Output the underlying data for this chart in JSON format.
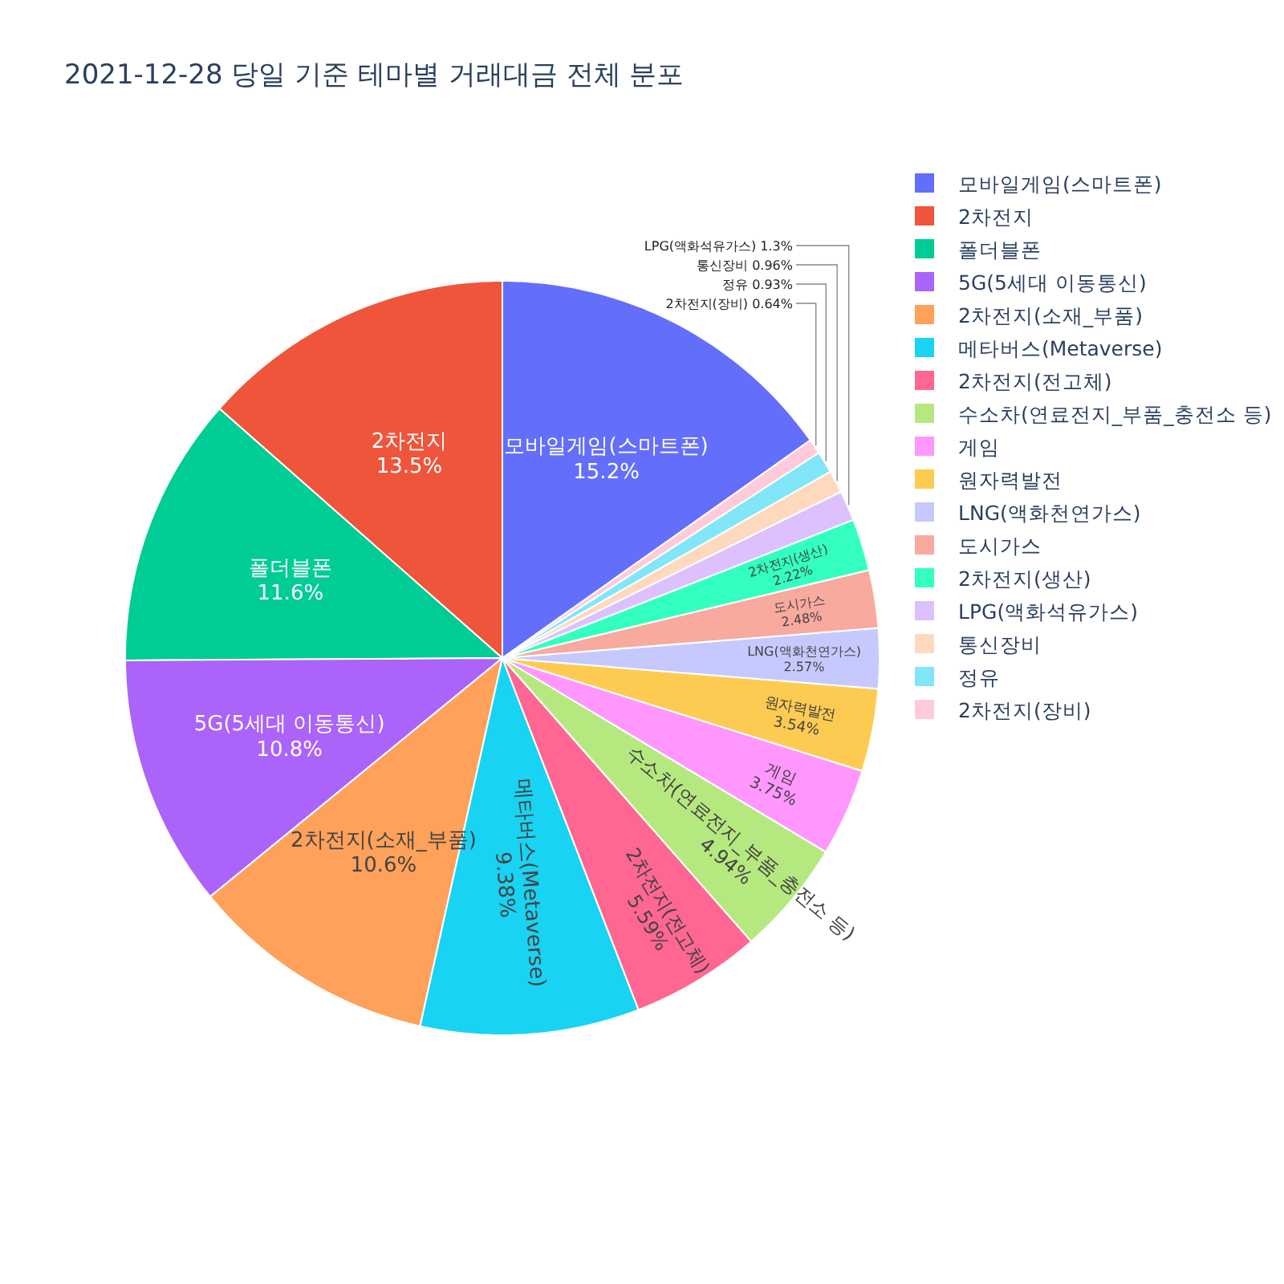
{
  "chart_data": {
    "type": "pie",
    "title": "2021-12-28 당일 기준 테마별 거래대금 전체 분포",
    "categories": [
      "모바일게임(스마트폰)",
      "2차전지",
      "폴더블폰",
      "5G(5세대 이동통신)",
      "2차전지(소재_부품)",
      "메타버스(Metaverse)",
      "2차전지(전고체)",
      "수소차(연료전지_부품_충전소 등)",
      "게임",
      "원자력발전",
      "LNG(액화천연가스)",
      "도시가스",
      "2차전지(생산)",
      "LPG(액화석유가스)",
      "통신장비",
      "정유",
      "2차전지(장비)"
    ],
    "values": [
      15.2,
      13.5,
      11.6,
      10.8,
      10.6,
      9.38,
      5.59,
      4.94,
      3.75,
      3.54,
      2.57,
      2.48,
      2.22,
      1.3,
      0.96,
      0.93,
      0.64
    ],
    "value_labels": [
      "15.2%",
      "13.5%",
      "11.6%",
      "10.8%",
      "10.6%",
      "9.38%",
      "5.59%",
      "4.94%",
      "3.75%",
      "3.54%",
      "2.57%",
      "2.48%",
      "2.22%",
      "1.3%",
      "0.96%",
      "0.93%",
      "0.64%"
    ],
    "colors": [
      "#636efa",
      "#ef553b",
      "#00cc96",
      "#ab63fa",
      "#ffa15a",
      "#19d3f3",
      "#ff6692",
      "#b6e880",
      "#ff97ff",
      "#fecb52",
      "#c6c9fd",
      "#f7aa9d",
      "#33ffc0",
      "#dcc1fd",
      "#ffd9bd",
      "#80e6f8",
      "#ffcbda"
    ],
    "legend": "right"
  }
}
